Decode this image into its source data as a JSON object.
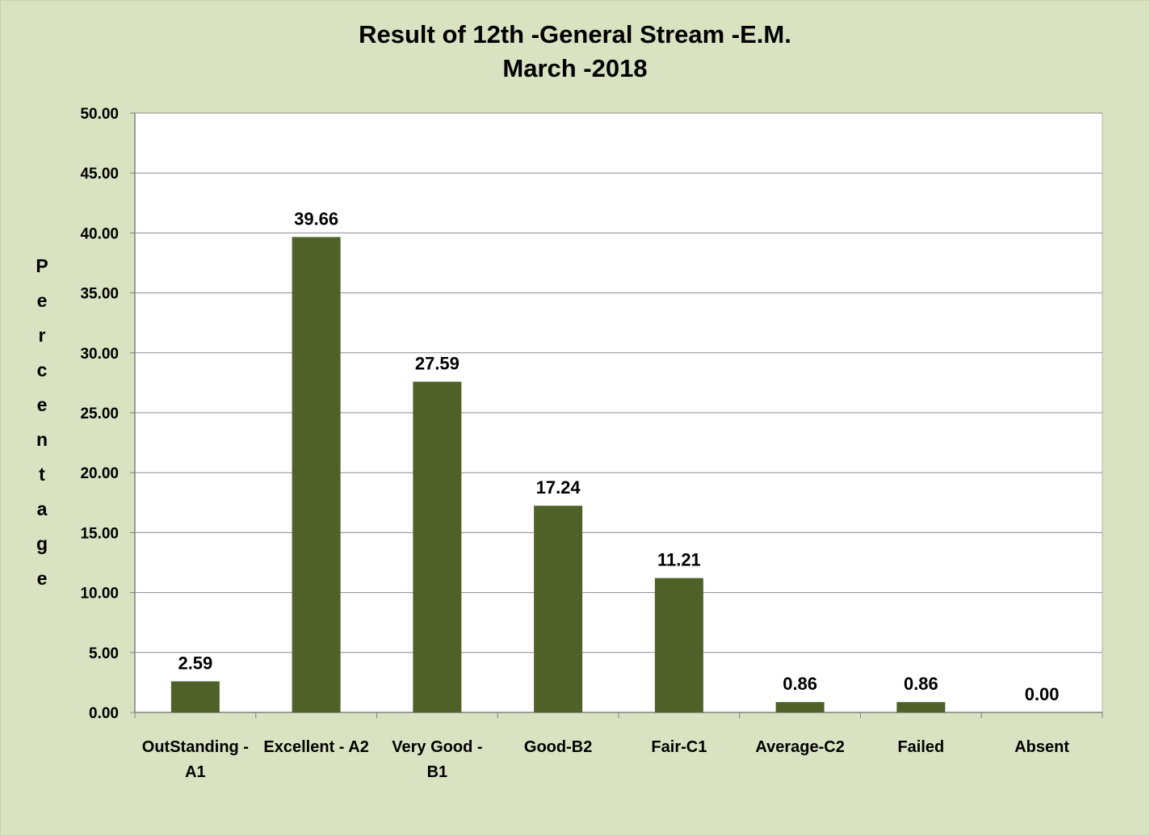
{
  "chart_data": {
    "type": "bar",
    "title": [
      "Result of 12th -General Stream -E.M.",
      "March -2018"
    ],
    "ylabel": "Percentage",
    "xlabel": "",
    "categories": [
      [
        "OutStanding -",
        "A1"
      ],
      [
        "Excellent - A2"
      ],
      [
        "Very Good -",
        "B1"
      ],
      [
        "Good-B2"
      ],
      [
        "Fair-C1"
      ],
      [
        "Average-C2"
      ],
      [
        "Failed"
      ],
      [
        "Absent"
      ]
    ],
    "values": [
      2.59,
      39.66,
      27.59,
      17.24,
      11.21,
      0.86,
      0.86,
      0.0
    ],
    "data_labels": [
      "2.59",
      "39.66",
      "27.59",
      "17.24",
      "11.21",
      "0.86",
      "0.86",
      "0.00"
    ],
    "ylim": [
      0,
      50
    ],
    "yticks": [
      "0.00",
      "5.00",
      "10.00",
      "15.00",
      "20.00",
      "25.00",
      "30.00",
      "35.00",
      "40.00",
      "45.00",
      "50.00"
    ],
    "grid": true,
    "legend": "none",
    "colors": {
      "background": "#d9e3c1",
      "plot_area": "#ffffff",
      "bar": "#4f6128",
      "gridline": "#8c8c8c"
    }
  }
}
